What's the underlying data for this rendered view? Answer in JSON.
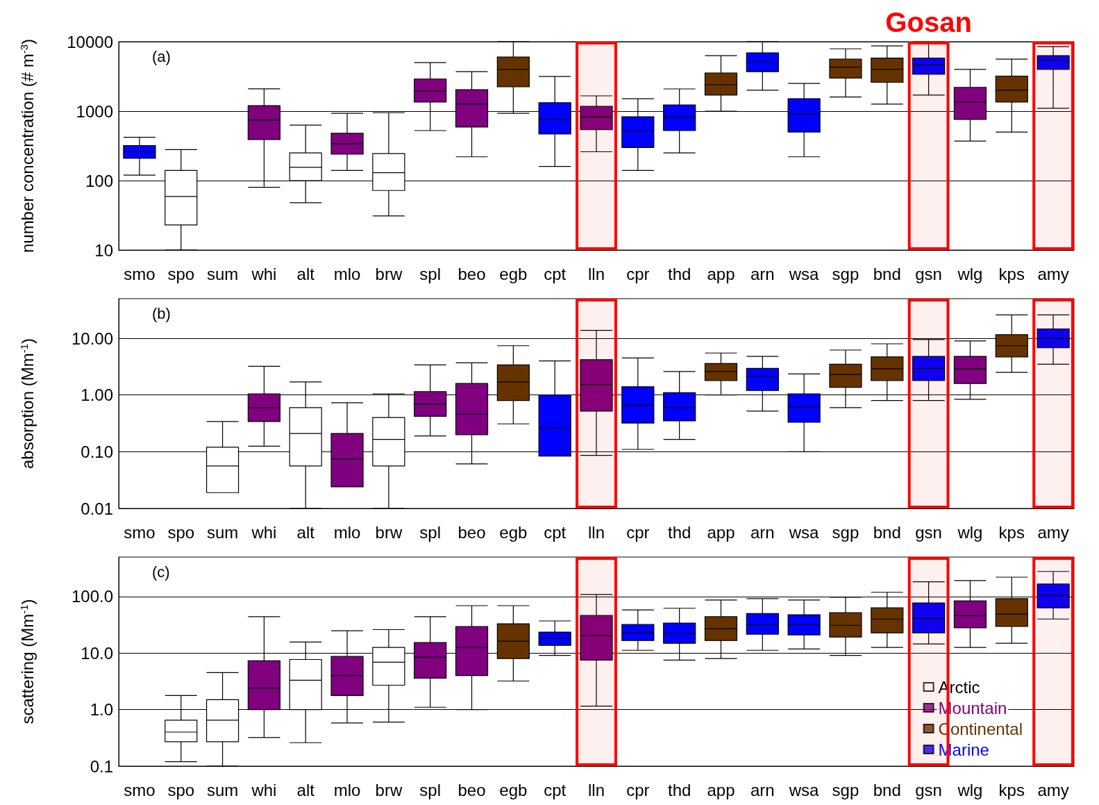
{
  "chart_data": [
    {
      "type": "box",
      "ylabel": "number concentration (# m$^{-3}$)",
      "annotations": [
        "(a)",
        "Gosan"
      ],
      "log": "y",
      "grid": "y",
      "ylim": [
        10,
        10000
      ],
      "yticks": [
        10,
        100,
        1000,
        10000
      ],
      "categories": [
        "smo",
        "spo",
        "sum",
        "whi",
        "alt",
        "mlo",
        "brw",
        "spl",
        "beo",
        "egb",
        "cpt",
        "lln",
        "cpr",
        "thd",
        "app",
        "arn",
        "wsa",
        "sgp",
        "bnd",
        "gsn",
        "wlg",
        "kps",
        "amy"
      ],
      "bands": [
        {
          "axis": "x",
          "from": "lln",
          "to": "lln",
          "color": "#ff0000"
        },
        {
          "axis": "x",
          "from": "gsn",
          "to": "gsn",
          "color": "#ff0000"
        },
        {
          "axis": "x",
          "from": "amy",
          "to": "amy",
          "color": "#ff0000"
        }
      ],
      "series": [
        {
          "color": "#ffffff",
          "boxes": [
            null,
            {
              "low": 10,
              "q1": 23,
              "median": 59,
              "q3": 140,
              "high": 280
            },
            null,
            null,
            {
              "low": 48,
              "q1": 100,
              "median": 155,
              "q3": 250,
              "high": 630
            },
            null,
            {
              "low": 31,
              "q1": 72,
              "median": 130,
              "q3": 245,
              "high": 950
            },
            null,
            null,
            null,
            null,
            null,
            null,
            null,
            null,
            null,
            null,
            null,
            null,
            null,
            null,
            null,
            null
          ]
        },
        {
          "color": "#800080",
          "boxes": [
            null,
            null,
            null,
            {
              "low": 80,
              "q1": 390,
              "median": 740,
              "q3": 1200,
              "high": 2100
            },
            null,
            {
              "low": 140,
              "q1": 240,
              "median": 340,
              "q3": 480,
              "high": 930
            },
            null,
            {
              "low": 525,
              "q1": 1350,
              "median": 1950,
              "q3": 2900,
              "high": 5000
            },
            {
              "low": 220,
              "q1": 590,
              "median": 1260,
              "q3": 2040,
              "high": 3700
            },
            null,
            null,
            {
              "low": 260,
              "q1": 540,
              "median": 830,
              "q3": 1170,
              "high": 1660
            },
            null,
            null,
            null,
            null,
            null,
            null,
            null,
            null,
            {
              "low": 370,
              "q1": 760,
              "median": 1350,
              "q3": 2200,
              "high": 4000
            },
            null,
            null
          ]
        },
        {
          "color": "#663300",
          "boxes": [
            null,
            null,
            null,
            null,
            null,
            null,
            null,
            null,
            null,
            {
              "low": 930,
              "q1": 2240,
              "median": 4000,
              "q3": 6000,
              "high": 10000
            },
            null,
            null,
            null,
            null,
            {
              "low": 1000,
              "q1": 1700,
              "median": 2400,
              "q3": 3550,
              "high": 6300
            },
            null,
            null,
            {
              "low": 1600,
              "q1": 3000,
              "median": 4300,
              "q3": 5600,
              "high": 7900
            },
            {
              "low": 1260,
              "q1": 2600,
              "median": 4000,
              "q3": 5800,
              "high": 8700
            },
            null,
            null,
            {
              "low": 500,
              "q1": 1350,
              "median": 2000,
              "q3": 3200,
              "high": 5600
            },
            null
          ]
        },
        {
          "color": "#0000ff",
          "boxes": [
            {
              "low": 120,
              "q1": 210,
              "median": 260,
              "q3": 320,
              "high": 420
            },
            null,
            null,
            null,
            null,
            null,
            null,
            null,
            null,
            null,
            {
              "low": 160,
              "q1": 470,
              "median": 760,
              "q3": 1320,
              "high": 3160
            },
            null,
            {
              "low": 140,
              "q1": 300,
              "median": 525,
              "q3": 830,
              "high": 1510
            },
            {
              "low": 250,
              "q1": 525,
              "median": 830,
              "q3": 1230,
              "high": 2090
            },
            null,
            {
              "low": 2000,
              "q1": 3700,
              "median": 5100,
              "q3": 6900,
              "high": 10000
            },
            {
              "low": 220,
              "q1": 500,
              "median": 910,
              "q3": 1510,
              "high": 2500
            },
            null,
            null,
            {
              "low": 1700,
              "q1": 3400,
              "median": 4600,
              "q3": 5800,
              "high": 10000
            },
            null,
            null,
            {
              "low": 1100,
              "q1": 4000,
              "median": 5400,
              "q3": 6300,
              "high": 8500
            }
          ]
        }
      ]
    },
    {
      "type": "box",
      "ylabel": "absorption (Mm$^{-1}$)",
      "annotations": [
        "(b)"
      ],
      "log": "y",
      "grid": "y",
      "ylim": [
        0.01,
        50
      ],
      "yticks": [
        {
          "value": 0.01,
          "label": "0.01"
        },
        {
          "value": 0.1,
          "label": "0.10"
        },
        {
          "value": 1,
          "label": "1.00"
        },
        {
          "value": 10,
          "label": "10.00"
        }
      ],
      "categories": [
        "smo",
        "spo",
        "sum",
        "whi",
        "alt",
        "mlo",
        "brw",
        "spl",
        "beo",
        "egb",
        "cpt",
        "lln",
        "cpr",
        "thd",
        "app",
        "arn",
        "wsa",
        "sgp",
        "bnd",
        "gsn",
        "wlg",
        "kps",
        "amy"
      ],
      "bands": [
        {
          "axis": "x",
          "from": "lln",
          "to": "lln",
          "color": "#ff0000"
        },
        {
          "axis": "x",
          "from": "gsn",
          "to": "gsn",
          "color": "#ff0000"
        },
        {
          "axis": "x",
          "from": "amy",
          "to": "amy",
          "color": "#ff0000"
        }
      ],
      "series": [
        {
          "color": "#ffffff",
          "boxes": [
            null,
            null,
            {
              "low": 0.019,
              "q1": 0.019,
              "median": 0.056,
              "q3": 0.12,
              "high": 0.34
            },
            null,
            {
              "low": 0.01,
              "q1": 0.056,
              "median": 0.21,
              "q3": 0.6,
              "high": 1.7
            },
            null,
            {
              "low": 0.01,
              "q1": 0.056,
              "median": 0.165,
              "q3": 0.4,
              "high": 1.05
            },
            null,
            null,
            null,
            null,
            null,
            null,
            null,
            null,
            null,
            null,
            null,
            null,
            null,
            null,
            null,
            null
          ]
        },
        {
          "color": "#800080",
          "boxes": [
            null,
            null,
            null,
            {
              "low": 0.125,
              "q1": 0.34,
              "median": 0.6,
              "q3": 1.05,
              "high": 3.2
            },
            null,
            {
              "low": 0.024,
              "q1": 0.024,
              "median": 0.075,
              "q3": 0.21,
              "high": 0.73
            },
            null,
            {
              "low": 0.19,
              "q1": 0.42,
              "median": 0.69,
              "q3": 1.15,
              "high": 3.4
            },
            {
              "low": 0.061,
              "q1": 0.2,
              "median": 0.46,
              "q3": 1.6,
              "high": 3.7
            },
            null,
            null,
            {
              "low": 0.086,
              "q1": 0.52,
              "median": 1.53,
              "q3": 4.2,
              "high": 13.8
            },
            null,
            null,
            null,
            null,
            null,
            null,
            null,
            null,
            {
              "low": 0.84,
              "q1": 1.6,
              "median": 2.9,
              "q3": 4.8,
              "high": 9
            },
            null,
            null
          ]
        },
        {
          "color": "#663300",
          "boxes": [
            null,
            null,
            null,
            null,
            null,
            null,
            null,
            null,
            null,
            {
              "low": 0.31,
              "q1": 0.8,
              "median": 1.7,
              "q3": 3.4,
              "high": 7.4
            },
            null,
            null,
            null,
            null,
            {
              "low": 1,
              "q1": 1.8,
              "median": 2.6,
              "q3": 3.6,
              "high": 5.5
            },
            null,
            null,
            {
              "low": 0.6,
              "q1": 1.37,
              "median": 2.3,
              "q3": 3.5,
              "high": 6.2
            },
            {
              "low": 0.8,
              "q1": 1.8,
              "median": 2.9,
              "q3": 4.7,
              "high": 8
            },
            null,
            null,
            {
              "low": 2.5,
              "q1": 4.7,
              "median": 7.4,
              "q3": 11.6,
              "high": 25.8
            },
            null
          ]
        },
        {
          "color": "#0000ff",
          "boxes": [
            null,
            null,
            null,
            null,
            null,
            null,
            null,
            null,
            null,
            null,
            {
              "low": 0.084,
              "q1": 0.084,
              "median": 0.26,
              "q3": 1,
              "high": 4
            },
            null,
            {
              "low": 0.11,
              "q1": 0.32,
              "median": 0.67,
              "q3": 1.4,
              "high": 4.5
            },
            {
              "low": 0.165,
              "q1": 0.35,
              "median": 0.6,
              "q3": 1.1,
              "high": 2.6
            },
            null,
            {
              "low": 0.52,
              "q1": 1.2,
              "median": 2.1,
              "q3": 2.95,
              "high": 4.8
            },
            {
              "low": 0.1,
              "q1": 0.33,
              "median": 0.62,
              "q3": 1.05,
              "high": 2.35
            },
            null,
            null,
            {
              "low": 0.8,
              "q1": 1.8,
              "median": 2.95,
              "q3": 4.8,
              "high": 9.5
            },
            null,
            null,
            {
              "low": 3.5,
              "q1": 6.8,
              "median": 10,
              "q3": 14.6,
              "high": 25.8
            }
          ]
        }
      ]
    },
    {
      "type": "box",
      "ylabel": "scattering (Mm$^{-1}$)",
      "annotations": [
        "(c)"
      ],
      "log": "y",
      "grid": "y",
      "legend": "bottom right",
      "ylim": [
        0.1,
        500
      ],
      "yticks": [
        {
          "value": 0.1,
          "label": "0.1"
        },
        {
          "value": 1,
          "label": "1.0"
        },
        {
          "value": 10,
          "label": "10.0"
        },
        {
          "value": 100,
          "label": "100.0"
        }
      ],
      "categories": [
        "smo",
        "spo",
        "sum",
        "whi",
        "alt",
        "mlo",
        "brw",
        "spl",
        "beo",
        "egb",
        "cpt",
        "lln",
        "cpr",
        "thd",
        "app",
        "arn",
        "wsa",
        "sgp",
        "bnd",
        "gsn",
        "wlg",
        "kps",
        "amy"
      ],
      "bands": [
        {
          "axis": "x",
          "from": "lln",
          "to": "lln",
          "color": "#ff0000"
        },
        {
          "axis": "x",
          "from": "gsn",
          "to": "gsn",
          "color": "#ff0000"
        },
        {
          "axis": "x",
          "from": "amy",
          "to": "amy",
          "color": "#ff0000"
        }
      ],
      "series": [
        {
          "name": "Arctic",
          "color": "#ffffff",
          "boxes": [
            null,
            {
              "low": 0.12,
              "q1": 0.27,
              "median": 0.4,
              "q3": 0.65,
              "high": 1.77
            },
            {
              "low": 0.1,
              "q1": 0.27,
              "median": 0.65,
              "q3": 1.5,
              "high": 4.5
            },
            null,
            {
              "low": 0.26,
              "q1": 1,
              "median": 3.3,
              "q3": 7.7,
              "high": 15.7
            },
            null,
            {
              "low": 0.6,
              "q1": 2.7,
              "median": 6.9,
              "q3": 12.6,
              "high": 26
            },
            null,
            null,
            null,
            null,
            null,
            null,
            null,
            null,
            null,
            null,
            null,
            null,
            null,
            null,
            null,
            null
          ]
        },
        {
          "name": "Mountain",
          "color": "#800080",
          "boxes": [
            null,
            null,
            null,
            {
              "low": 0.32,
              "q1": 1,
              "median": 2.4,
              "q3": 7.3,
              "high": 44
            },
            null,
            {
              "low": 0.58,
              "q1": 1.77,
              "median": 4,
              "q3": 8.7,
              "high": 24.8
            },
            null,
            {
              "low": 1.1,
              "q1": 3.6,
              "median": 8.4,
              "q3": 15.3,
              "high": 44
            },
            {
              "low": 1,
              "q1": 4,
              "median": 12.6,
              "q3": 29.5,
              "high": 69
            },
            null,
            null,
            {
              "low": 1.15,
              "q1": 7.5,
              "median": 20.4,
              "q3": 46.4,
              "high": 109
            },
            null,
            null,
            null,
            null,
            null,
            null,
            null,
            null,
            {
              "low": 12.6,
              "q1": 28,
              "median": 46,
              "q3": 84,
              "high": 192
            },
            null,
            null
          ]
        },
        {
          "name": "Continental",
          "color": "#663300",
          "boxes": [
            null,
            null,
            null,
            null,
            null,
            null,
            null,
            null,
            null,
            {
              "low": 3.2,
              "q1": 8,
              "median": 16.2,
              "q3": 33,
              "high": 69
            },
            null,
            null,
            null,
            null,
            {
              "low": 8,
              "q1": 16.7,
              "median": 27,
              "q3": 44,
              "high": 87
            },
            null,
            null,
            {
              "low": 9.1,
              "q1": 19.2,
              "median": 31,
              "q3": 52,
              "high": 97
            },
            {
              "low": 12.6,
              "q1": 22.8,
              "median": 40,
              "q3": 63,
              "high": 119
            },
            null,
            null,
            {
              "low": 14.9,
              "q1": 29.5,
              "median": 49,
              "q3": 92,
              "high": 220
            },
            null
          ]
        },
        {
          "name": "Marine",
          "color": "#0000ff",
          "boxes": [
            null,
            null,
            null,
            null,
            null,
            null,
            null,
            null,
            null,
            null,
            {
              "low": 9.1,
              "q1": 13.7,
              "median": 18.2,
              "q3": 23.5,
              "high": 37
            },
            null,
            {
              "low": 11.2,
              "q1": 16.7,
              "median": 22.8,
              "q3": 32,
              "high": 58
            },
            {
              "low": 7.5,
              "q1": 14.9,
              "median": 22.2,
              "q3": 34,
              "high": 62
            },
            null,
            {
              "low": 11.2,
              "q1": 21.6,
              "median": 32,
              "q3": 50,
              "high": 92
            },
            {
              "low": 11.8,
              "q1": 21,
              "median": 32,
              "q3": 47.7,
              "high": 87
            },
            null,
            null,
            {
              "low": 14.5,
              "q1": 22.8,
              "median": 41,
              "q3": 77,
              "high": 182
            },
            null,
            null,
            {
              "low": 40,
              "q1": 63,
              "median": 105,
              "q3": 167,
              "high": 278
            }
          ]
        }
      ]
    }
  ]
}
